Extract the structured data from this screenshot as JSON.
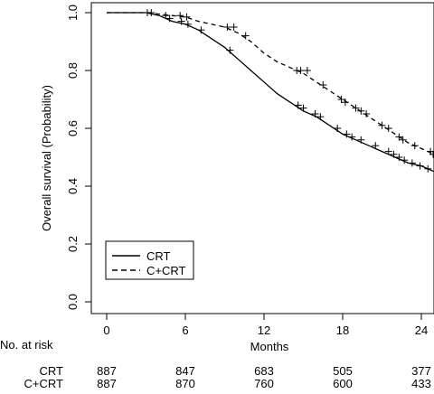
{
  "chart_data": {
    "type": "line",
    "title": "",
    "xlabel": "Months",
    "ylabel": "Overall survival (Probability)",
    "xlim": [
      0,
      25
    ],
    "ylim": [
      0,
      1.0
    ],
    "x_ticks": [
      0,
      6,
      12,
      18,
      24
    ],
    "y_ticks": [
      0.0,
      0.2,
      0.4,
      0.6,
      0.8,
      1.0
    ],
    "y_tick_labels": [
      "0.0",
      "0.2",
      "0.4",
      "0.6",
      "0.8",
      "1.0"
    ],
    "grid": false,
    "legend_position": "bottom-left",
    "series": [
      {
        "name": "CRT",
        "line_style": "solid",
        "points": [
          [
            0,
            1.0
          ],
          [
            3,
            1.0
          ],
          [
            4,
            0.99
          ],
          [
            5,
            0.97
          ],
          [
            6,
            0.96
          ],
          [
            7,
            0.94
          ],
          [
            8,
            0.91
          ],
          [
            9,
            0.88
          ],
          [
            10,
            0.84
          ],
          [
            11,
            0.8
          ],
          [
            12,
            0.76
          ],
          [
            13,
            0.72
          ],
          [
            14,
            0.69
          ],
          [
            15,
            0.66
          ],
          [
            16,
            0.64
          ],
          [
            17,
            0.61
          ],
          [
            18,
            0.58
          ],
          [
            19,
            0.56
          ],
          [
            20,
            0.54
          ],
          [
            21,
            0.52
          ],
          [
            22,
            0.5
          ],
          [
            23,
            0.48
          ],
          [
            24,
            0.47
          ],
          [
            25,
            0.45
          ]
        ],
        "censor_marks": [
          [
            4.8,
            0.98
          ],
          [
            5.7,
            0.97
          ],
          [
            6.2,
            0.96
          ],
          [
            7.2,
            0.94
          ],
          [
            9.4,
            0.87
          ],
          [
            14.6,
            0.68
          ],
          [
            15.0,
            0.67
          ],
          [
            15.9,
            0.65
          ],
          [
            16.3,
            0.64
          ],
          [
            17.6,
            0.6
          ],
          [
            18.3,
            0.58
          ],
          [
            18.7,
            0.57
          ],
          [
            19.4,
            0.56
          ],
          [
            20.5,
            0.54
          ],
          [
            21.5,
            0.52
          ],
          [
            21.9,
            0.51
          ],
          [
            22.3,
            0.5
          ],
          [
            22.7,
            0.49
          ],
          [
            23.3,
            0.48
          ],
          [
            23.9,
            0.47
          ],
          [
            24.5,
            0.46
          ]
        ]
      },
      {
        "name": "C+CRT",
        "line_style": "dashed",
        "points": [
          [
            0,
            1.0
          ],
          [
            3.3,
            1.0
          ],
          [
            4,
            0.995
          ],
          [
            5,
            0.99
          ],
          [
            6,
            0.985
          ],
          [
            7,
            0.97
          ],
          [
            8,
            0.96
          ],
          [
            9,
            0.95
          ],
          [
            10,
            0.93
          ],
          [
            11,
            0.9
          ],
          [
            12,
            0.86
          ],
          [
            13,
            0.83
          ],
          [
            14,
            0.81
          ],
          [
            15,
            0.79
          ],
          [
            16,
            0.76
          ],
          [
            17,
            0.73
          ],
          [
            18,
            0.7
          ],
          [
            19,
            0.67
          ],
          [
            20,
            0.64
          ],
          [
            21,
            0.61
          ],
          [
            22,
            0.58
          ],
          [
            23,
            0.55
          ],
          [
            24,
            0.53
          ],
          [
            25,
            0.51
          ]
        ],
        "censor_marks": [
          [
            3.1,
            1.0
          ],
          [
            3.4,
            1.0
          ],
          [
            4.5,
            0.99
          ],
          [
            5.6,
            0.99
          ],
          [
            6.1,
            0.985
          ],
          [
            9.2,
            0.95
          ],
          [
            9.7,
            0.95
          ],
          [
            10.6,
            0.92
          ],
          [
            14.5,
            0.8
          ],
          [
            14.8,
            0.8
          ],
          [
            15.3,
            0.8
          ],
          [
            16.5,
            0.75
          ],
          [
            17.9,
            0.7
          ],
          [
            18.2,
            0.69
          ],
          [
            19.0,
            0.67
          ],
          [
            19.4,
            0.66
          ],
          [
            19.8,
            0.65
          ],
          [
            21.0,
            0.61
          ],
          [
            21.5,
            0.6
          ],
          [
            22.3,
            0.57
          ],
          [
            22.6,
            0.56
          ],
          [
            23.5,
            0.54
          ],
          [
            24.7,
            0.52
          ],
          [
            24.9,
            0.51
          ]
        ]
      }
    ],
    "risk_table": {
      "header": "No. at risk",
      "rows": [
        {
          "label": "CRT",
          "values": [
            "887",
            "847",
            "683",
            "505",
            "377"
          ]
        },
        {
          "label": "C+CRT",
          "values": [
            "887",
            "870",
            "760",
            "600",
            "433"
          ]
        }
      ]
    }
  }
}
